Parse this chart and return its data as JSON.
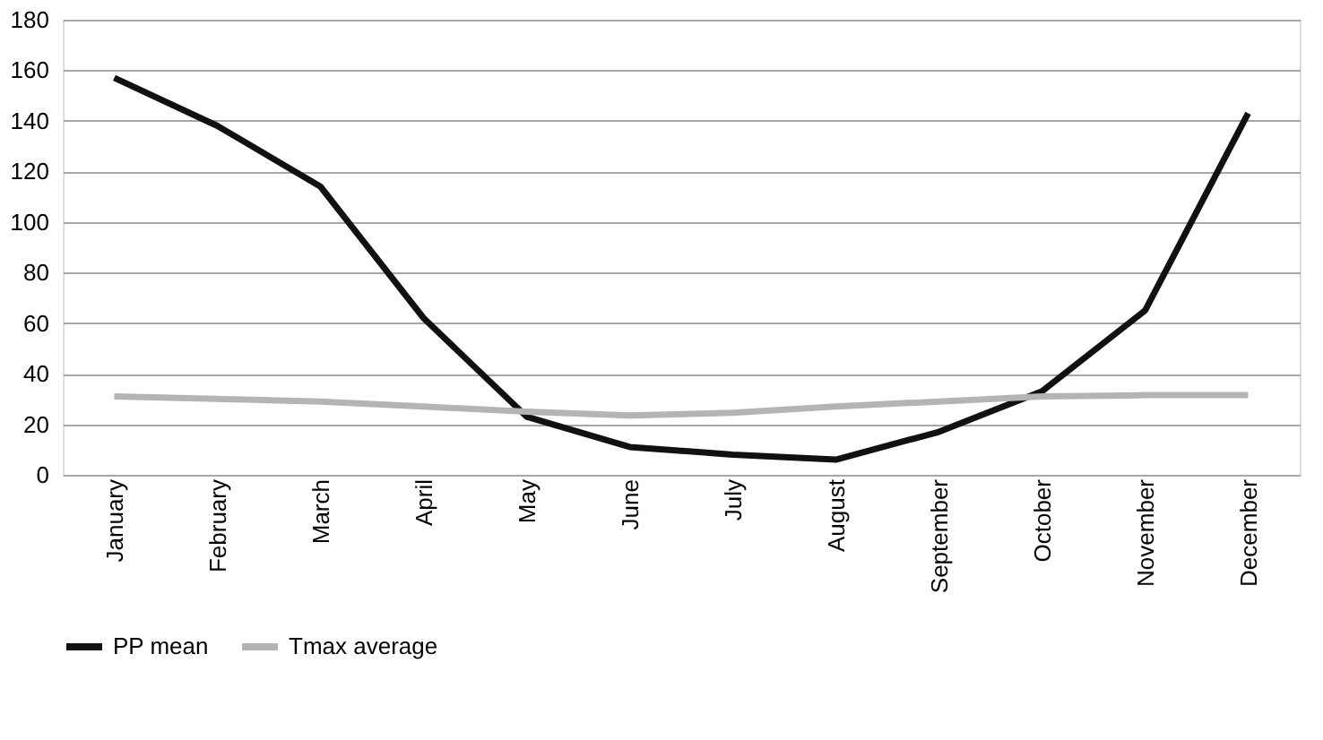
{
  "chart_data": {
    "type": "line",
    "categories": [
      "January",
      "February",
      "March",
      "April",
      "May",
      "June",
      "July",
      "August",
      "September",
      "October",
      "November",
      "December"
    ],
    "series": [
      {
        "name": "PP mean",
        "color": "#111111",
        "values": [
          157,
          138,
          114,
          62,
          23,
          11,
          8,
          6,
          17,
          33,
          65,
          143
        ]
      },
      {
        "name": "Tmax average",
        "color": "#b4b4b4",
        "values": [
          31,
          30,
          29,
          27,
          25,
          23.5,
          24.5,
          27,
          29,
          31,
          31.5,
          31.5
        ]
      }
    ],
    "ylim": [
      0,
      180
    ],
    "yticks": [
      0,
      20,
      40,
      60,
      80,
      100,
      120,
      140,
      160,
      180
    ],
    "grid": "y",
    "legend": "bottom",
    "marker": "none",
    "line_style": "solid"
  }
}
